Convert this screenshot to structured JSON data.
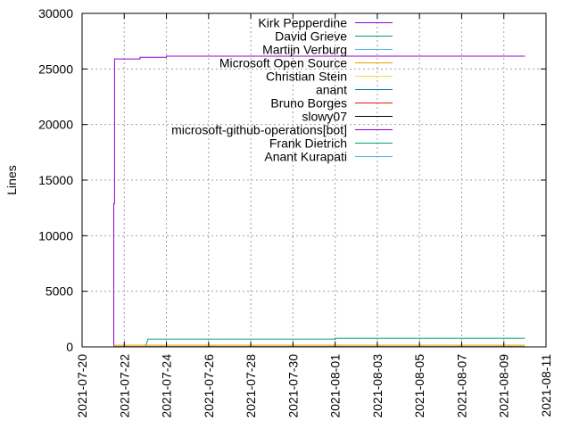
{
  "chart_data": {
    "type": "line",
    "ylabel": "Lines",
    "ylim": [
      0,
      30000
    ],
    "xlim": [
      "2021-07-20",
      "2021-08-11"
    ],
    "y_ticks": [
      "0",
      "5000",
      "10000",
      "15000",
      "20000",
      "25000",
      "30000"
    ],
    "x_ticks": [
      "2021-07-20",
      "2021-07-22",
      "2021-07-24",
      "2021-07-26",
      "2021-07-28",
      "2021-07-30",
      "2021-08-01",
      "2021-08-03",
      "2021-08-05",
      "2021-08-07",
      "2021-08-09",
      "2021-08-11"
    ],
    "grid": true,
    "legend_position": "top-right",
    "series": [
      {
        "name": "Kirk Pepperdine",
        "color": "#9400d3",
        "points": [
          [
            "2021-07-21T12:00",
            0
          ],
          [
            "2021-07-21T12:00",
            12900
          ],
          [
            "2021-07-21T13:00",
            12900
          ],
          [
            "2021-07-21T13:00",
            25900
          ],
          [
            "2021-07-22T18:00",
            25900
          ],
          [
            "2021-07-22T18:00",
            26050
          ],
          [
            "2021-07-24T00:00",
            26050
          ],
          [
            "2021-07-24T00:00",
            26150
          ],
          [
            "2021-08-10T00:00",
            26150
          ]
        ]
      },
      {
        "name": "David Grieve",
        "color": "#009e73",
        "points": [
          [
            "2021-07-21T12:00",
            0
          ],
          [
            "2021-07-23T00:00",
            0
          ],
          [
            "2021-07-23T03:00",
            700
          ],
          [
            "2021-08-01T00:00",
            700
          ],
          [
            "2021-08-01T00:00",
            780
          ],
          [
            "2021-08-10T00:00",
            780
          ]
        ]
      },
      {
        "name": "Martijn Verburg",
        "color": "#56b4e9",
        "points": [
          [
            "2021-07-21T12:00",
            30
          ],
          [
            "2021-08-10T00:00",
            30
          ]
        ]
      },
      {
        "name": "Microsoft Open Source",
        "color": "#e69f00",
        "points": [
          [
            "2021-07-21T12:00",
            150
          ],
          [
            "2021-08-10T00:00",
            150
          ]
        ]
      },
      {
        "name": "Christian Stein",
        "color": "#f0e442",
        "points": [
          [
            "2021-07-21T12:00",
            20
          ],
          [
            "2021-08-10T00:00",
            20
          ]
        ]
      },
      {
        "name": "anant",
        "color": "#0072b2",
        "points": [
          [
            "2021-07-21T12:00",
            10
          ],
          [
            "2021-08-10T00:00",
            10
          ]
        ]
      },
      {
        "name": "Bruno Borges",
        "color": "#e51e10",
        "points": [
          [
            "2021-07-21T12:00",
            5
          ],
          [
            "2021-08-10T00:00",
            5
          ]
        ]
      },
      {
        "name": "slowy07",
        "color": "#000000",
        "points": [
          [
            "2021-07-21T12:00",
            3
          ],
          [
            "2021-08-10T00:00",
            3
          ]
        ]
      },
      {
        "name": "microsoft-github-operations[bot]",
        "color": "#9400d3",
        "points": [
          [
            "2021-07-21T12:00",
            2
          ],
          [
            "2021-08-10T00:00",
            2
          ]
        ]
      },
      {
        "name": "Frank Dietrich",
        "color": "#009e73",
        "points": [
          [
            "2021-07-21T12:00",
            2
          ],
          [
            "2021-08-10T00:00",
            2
          ]
        ]
      },
      {
        "name": "Anant Kurapati",
        "color": "#56b4e9",
        "points": [
          [
            "2021-07-21T12:00",
            1
          ],
          [
            "2021-08-10T00:00",
            1
          ]
        ]
      }
    ]
  }
}
